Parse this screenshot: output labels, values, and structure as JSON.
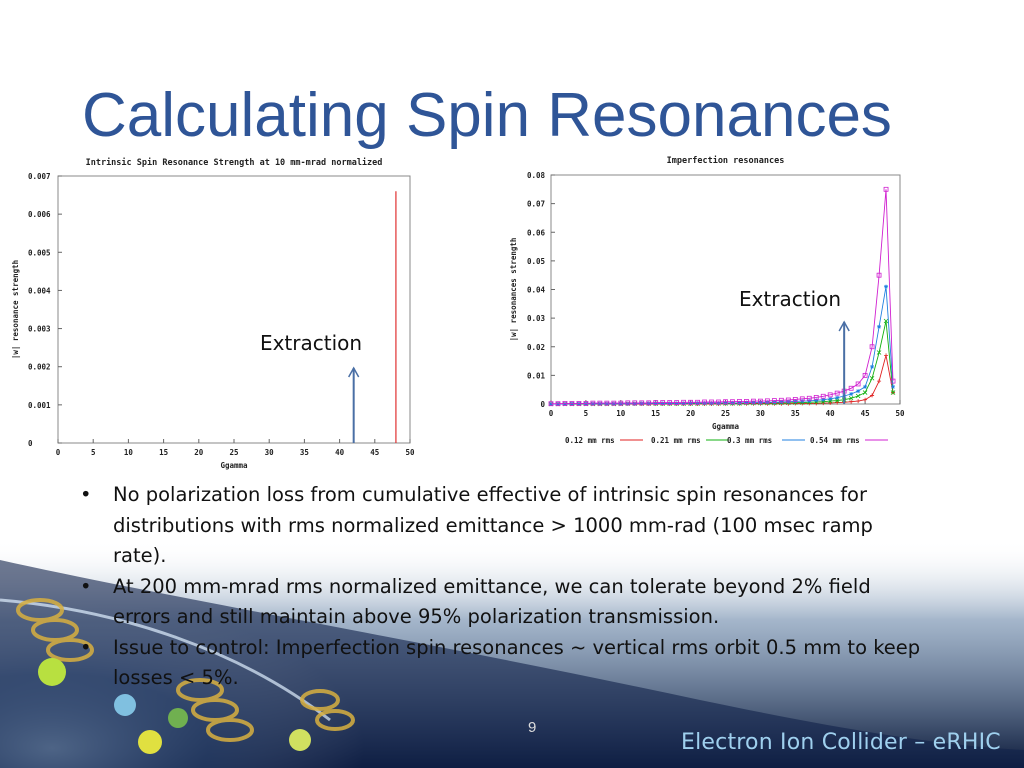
{
  "slide": {
    "title": "Calculating Spin Resonances",
    "page_number": "9",
    "footer": "Electron Ion Collider – eRHIC",
    "bullets": [
      "No polarization loss from cumulative effective of intrinsic spin resonances for distributions with rms normalized emittance > 1000 mm-rad (100 msec ramp rate).",
      "At 200 mm-mrad rms normalized emittance, we can tolerate beyond 2% field errors and still maintain above 95% polarization transmission.",
      "Issue to control: Imperfection spin resonances ~ vertical rms orbit 0.5 mm to keep losses < 5%."
    ]
  },
  "colors": {
    "title": "#2f5597",
    "annotation_arrow": "#4a6fa5"
  },
  "chart_data": [
    {
      "type": "bar",
      "title": "Intrinsic Spin Resonance Strength at 10 mm-mrad normalized",
      "xlabel": "Ggamma",
      "ylabel": "|w| resonance strength",
      "xlim": [
        0,
        50
      ],
      "ylim": [
        0,
        0.007
      ],
      "xticks": [
        "0",
        "5",
        "10",
        "15",
        "20",
        "25",
        "30",
        "35",
        "40",
        "45",
        "50"
      ],
      "yticks": [
        "0",
        "0.001",
        "0.002",
        "0.003",
        "0.004",
        "0.005",
        "0.006",
        "0.007"
      ],
      "grid": false,
      "bars": [
        {
          "x": 48,
          "value": 0.0066,
          "color": "#e03030"
        }
      ],
      "annotation": {
        "text": "Extraction",
        "x": 42
      }
    },
    {
      "type": "line",
      "title": "Imperfection resonances",
      "xlabel": "Ggamma",
      "ylabel": "|w| resonances strength",
      "xlim": [
        0,
        50
      ],
      "ylim": [
        0,
        0.08
      ],
      "xticks": [
        "0",
        "5",
        "10",
        "15",
        "20",
        "25",
        "30",
        "35",
        "40",
        "45",
        "50"
      ],
      "yticks": [
        "0",
        "0.01",
        "0.02",
        "0.03",
        "0.04",
        "0.05",
        "0.06",
        "0.07",
        "0.08"
      ],
      "grid": false,
      "legend_position": "bottom",
      "x": [
        0,
        1,
        2,
        3,
        4,
        5,
        6,
        7,
        8,
        9,
        10,
        11,
        12,
        13,
        14,
        15,
        16,
        17,
        18,
        19,
        20,
        21,
        22,
        23,
        24,
        25,
        26,
        27,
        28,
        29,
        30,
        31,
        32,
        33,
        34,
        35,
        36,
        37,
        38,
        39,
        40,
        41,
        42,
        43,
        44,
        45,
        46,
        47,
        48,
        49
      ],
      "series": [
        {
          "name": "0.12 mm rms",
          "color": "#e02020",
          "marker": "plus",
          "values": [
            0,
            0,
            0,
            0,
            0,
            0,
            0,
            0,
            0,
            0,
            0,
            0,
            0,
            0,
            0,
            0,
            0,
            0,
            0,
            0,
            0,
            0,
            0,
            0,
            0,
            0.0001,
            0.0001,
            0.0001,
            0.0001,
            0.0001,
            0.0001,
            0.0001,
            0.0001,
            0.0001,
            0.0001,
            0.0002,
            0.0002,
            0.0002,
            0.0002,
            0.0003,
            0.0004,
            0.0005,
            0.0006,
            0.0008,
            0.001,
            0.0015,
            0.003,
            0.008,
            0.017,
            0.004
          ]
        },
        {
          "name": "0.21 mm rms",
          "color": "#10b010",
          "marker": "x",
          "values": [
            0,
            0,
            0,
            0,
            0,
            0,
            0,
            0,
            0,
            0,
            0,
            0.0001,
            0.0001,
            0.0001,
            0.0001,
            0.0001,
            0.0001,
            0.0001,
            0.0001,
            0.0001,
            0.0001,
            0.0001,
            0.0002,
            0.0002,
            0.0002,
            0.0002,
            0.0002,
            0.0002,
            0.0003,
            0.0003,
            0.0003,
            0.0003,
            0.0003,
            0.0004,
            0.0004,
            0.0005,
            0.0005,
            0.0006,
            0.0007,
            0.0008,
            0.001,
            0.0012,
            0.0015,
            0.002,
            0.0028,
            0.004,
            0.009,
            0.018,
            0.029,
            0.004
          ]
        },
        {
          "name": "0.3 mm rms",
          "color": "#2080e0",
          "marker": "star",
          "values": [
            0,
            0,
            0,
            0.0001,
            0.0001,
            0.0001,
            0.0001,
            0.0001,
            0.0001,
            0.0001,
            0.0001,
            0.0001,
            0.0001,
            0.0002,
            0.0002,
            0.0002,
            0.0002,
            0.0002,
            0.0002,
            0.0002,
            0.0003,
            0.0003,
            0.0003,
            0.0003,
            0.0003,
            0.0004,
            0.0004,
            0.0004,
            0.0005,
            0.0005,
            0.0005,
            0.0006,
            0.0006,
            0.0007,
            0.0008,
            0.0009,
            0.001,
            0.0011,
            0.0013,
            0.0015,
            0.0018,
            0.0022,
            0.0028,
            0.0035,
            0.0045,
            0.006,
            0.013,
            0.027,
            0.041,
            0.006
          ]
        },
        {
          "name": "0.54 mm rms",
          "color": "#d020d0",
          "marker": "square",
          "values": [
            0.0001,
            0.0001,
            0.0002,
            0.0002,
            0.0002,
            0.0002,
            0.0003,
            0.0003,
            0.0003,
            0.0003,
            0.0003,
            0.0004,
            0.0004,
            0.0004,
            0.0004,
            0.0005,
            0.0005,
            0.0005,
            0.0005,
            0.0006,
            0.0006,
            0.0006,
            0.0007,
            0.0007,
            0.0007,
            0.0008,
            0.0008,
            0.0009,
            0.0009,
            0.001,
            0.001,
            0.0011,
            0.0012,
            0.0013,
            0.0014,
            0.0016,
            0.0018,
            0.002,
            0.0023,
            0.0027,
            0.0032,
            0.0038,
            0.0045,
            0.0055,
            0.007,
            0.01,
            0.02,
            0.045,
            0.075,
            0.008
          ]
        }
      ],
      "annotation": {
        "text": "Extraction",
        "x": 42
      }
    }
  ]
}
